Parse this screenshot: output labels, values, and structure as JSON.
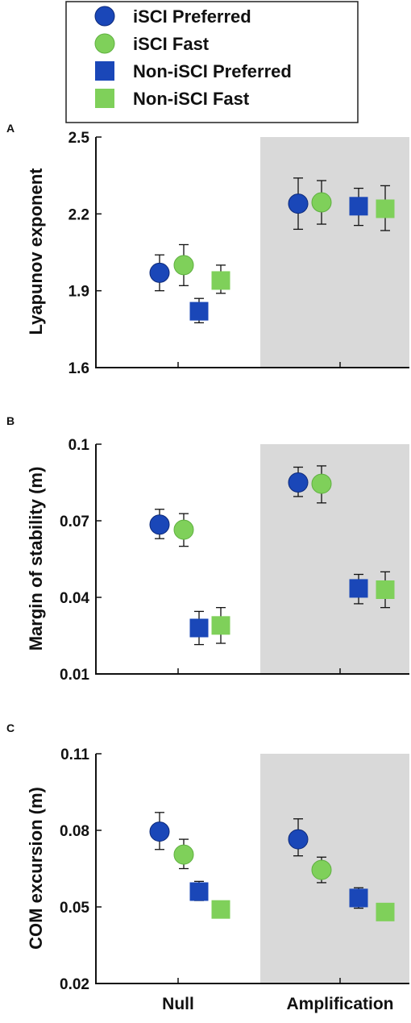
{
  "legend": {
    "entries": [
      {
        "label": "iSCI Preferred",
        "marker": "circle",
        "color": "#1a47b8"
      },
      {
        "label": "iSCI Fast",
        "marker": "circle",
        "color": "#7fd05a"
      },
      {
        "label": "Non-iSCI Preferred",
        "marker": "square",
        "color": "#1a47b8"
      },
      {
        "label": "Non-iSCI Fast",
        "marker": "square",
        "color": "#7fd05a"
      }
    ]
  },
  "categories": [
    "Null",
    "Amplification"
  ],
  "shaded_condition": "Amplification",
  "chart_data": [
    {
      "panel": "A",
      "type": "scatter",
      "ylabel": "Lyapunov exponent",
      "ylim": [
        1.6,
        2.5
      ],
      "yticks": [
        "1.6",
        "1.9",
        "2.2",
        "2.5"
      ],
      "series": [
        {
          "name": "iSCI Preferred",
          "values": [
            1.97,
            2.24
          ],
          "err_low": [
            1.9,
            2.14
          ],
          "err_high": [
            2.04,
            2.34
          ]
        },
        {
          "name": "iSCI Fast",
          "values": [
            2.0,
            2.245
          ],
          "err_low": [
            1.92,
            2.16
          ],
          "err_high": [
            2.08,
            2.33
          ]
        },
        {
          "name": "Non-iSCI Preferred",
          "values": [
            1.82,
            2.23
          ],
          "err_low": [
            1.775,
            2.155
          ],
          "err_high": [
            1.87,
            2.3
          ]
        },
        {
          "name": "Non-iSCI Fast",
          "values": [
            1.94,
            2.22
          ],
          "err_low": [
            1.89,
            2.135
          ],
          "err_high": [
            2.0,
            2.31
          ]
        }
      ]
    },
    {
      "panel": "B",
      "type": "scatter",
      "ylabel": "Margin of stability (m)",
      "ylim": [
        0.01,
        0.1
      ],
      "yticks": [
        "0.01",
        "0.04",
        "0.07",
        "0.1"
      ],
      "series": [
        {
          "name": "iSCI Preferred",
          "values": [
            0.0685,
            0.085
          ],
          "err_low": [
            0.063,
            0.0795
          ],
          "err_high": [
            0.0745,
            0.091
          ]
        },
        {
          "name": "iSCI Fast",
          "values": [
            0.0665,
            0.0845
          ],
          "err_low": [
            0.06,
            0.077
          ],
          "err_high": [
            0.0728,
            0.0915
          ]
        },
        {
          "name": "Non-iSCI Preferred",
          "values": [
            0.028,
            0.0435
          ],
          "err_low": [
            0.0215,
            0.0375
          ],
          "err_high": [
            0.0345,
            0.049
          ]
        },
        {
          "name": "Non-iSCI Fast",
          "values": [
            0.029,
            0.043
          ],
          "err_low": [
            0.022,
            0.036
          ],
          "err_high": [
            0.036,
            0.05
          ]
        }
      ]
    },
    {
      "panel": "C",
      "type": "scatter",
      "ylabel": "COM excursion (m)",
      "ylim": [
        0.02,
        0.11
      ],
      "yticks": [
        "0.02",
        "0.05",
        "0.08",
        "0.11"
      ],
      "series": [
        {
          "name": "iSCI Preferred",
          "values": [
            0.0795,
            0.0765
          ],
          "err_low": [
            0.0725,
            0.07
          ],
          "err_high": [
            0.087,
            0.0845
          ]
        },
        {
          "name": "iSCI Fast",
          "values": [
            0.0705,
            0.0645
          ],
          "err_low": [
            0.065,
            0.0595
          ],
          "err_high": [
            0.0765,
            0.0695
          ]
        },
        {
          "name": "Non-iSCI Preferred",
          "values": [
            0.056,
            0.0535
          ],
          "err_low": [
            0.0525,
            0.0495
          ],
          "err_high": [
            0.06,
            0.0575
          ]
        },
        {
          "name": "Non-iSCI Fast",
          "values": [
            0.049,
            0.048
          ],
          "err_low": [
            0.046,
            0.047
          ],
          "err_high": [
            0.052,
            0.048
          ]
        }
      ]
    }
  ]
}
